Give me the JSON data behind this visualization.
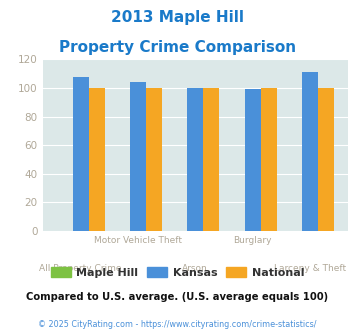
{
  "title_line1": "2013 Maple Hill",
  "title_line2": "Property Crime Comparison",
  "categories": [
    "All Property Crime",
    "Motor Vehicle Theft",
    "Arson",
    "Burglary",
    "Larceny & Theft"
  ],
  "maple_hill": [
    0,
    0,
    0,
    0,
    0
  ],
  "kansas": [
    108,
    104,
    100,
    99,
    111
  ],
  "national": [
    100,
    100,
    100,
    100,
    100
  ],
  "bar_colors": {
    "maple_hill": "#7dc242",
    "kansas": "#4a90d9",
    "national": "#f5a623"
  },
  "ylim": [
    0,
    120
  ],
  "yticks": [
    0,
    20,
    40,
    60,
    80,
    100,
    120
  ],
  "footnote": "Compared to U.S. average. (U.S. average equals 100)",
  "copyright": "© 2025 CityRating.com - https://www.cityrating.com/crime-statistics/",
  "bg_color": "#dce8e8",
  "title_color": "#1a7ac9",
  "tick_color": "#b0a898",
  "label_color": "#b0a898",
  "footnote_color": "#111111",
  "copyright_color": "#4a90d9",
  "legend_text_color": "#333333"
}
